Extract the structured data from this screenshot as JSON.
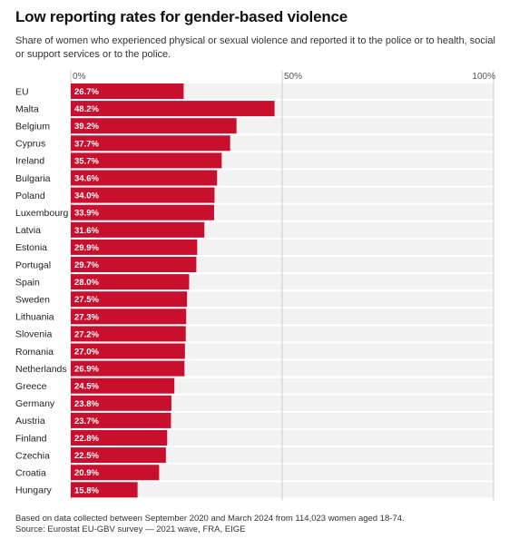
{
  "title": "Low reporting rates for gender-based violence",
  "subtitle": "Share of women who experienced physical or sexual violence and reported it to the police or to health, social or support services or to the police.",
  "footnote": "Based on data collected between September 2020 and March 2024 from 114,023 women aged 18-74.",
  "source": "Source: Eurostat EU-GBV survey — 2021 wave, FRA, EIGE",
  "colors": {
    "bar": "#c8102e",
    "row_band": "#f2f2f2",
    "grid": "#cccccc",
    "bar_label": "#ffffff"
  },
  "chart_data": {
    "type": "bar",
    "orientation": "horizontal",
    "categories": [
      "EU",
      "Malta",
      "Belgium",
      "Cyprus",
      "Ireland",
      "Bulgaria",
      "Poland",
      "Luxembourg",
      "Latvia",
      "Estonia",
      "Portugal",
      "Spain",
      "Sweden",
      "Lithuania",
      "Slovenia",
      "Romania",
      "Netherlands",
      "Greece",
      "Germany",
      "Austria",
      "Finland",
      "Czechia",
      "Croatia",
      "Hungary"
    ],
    "values": [
      26.7,
      48.2,
      39.2,
      37.7,
      35.7,
      34.6,
      34.0,
      33.9,
      31.6,
      29.9,
      29.7,
      28.0,
      27.5,
      27.3,
      27.2,
      27.0,
      26.9,
      24.5,
      23.8,
      23.7,
      22.8,
      22.5,
      20.9,
      15.8
    ],
    "value_labels": [
      "26.7%",
      "48.2%",
      "39.2%",
      "37.7%",
      "35.7%",
      "34.6%",
      "34.0%",
      "33.9%",
      "31.6%",
      "29.9%",
      "29.7%",
      "28.0%",
      "27.5%",
      "27.3%",
      "27.2%",
      "27.0%",
      "26.9%",
      "24.5%",
      "23.8%",
      "23.7%",
      "22.8%",
      "22.5%",
      "20.9%",
      "15.8%"
    ],
    "xlim": [
      0,
      100
    ],
    "x_ticks": [
      0,
      50,
      100
    ],
    "x_tick_labels": [
      "0%",
      "50%",
      "100%"
    ],
    "x_axis_position": "top",
    "grid": true
  }
}
